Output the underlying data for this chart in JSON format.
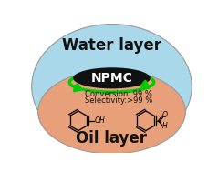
{
  "water_layer_color": "#a8d8ea",
  "oil_layer_color": "#e8a07a",
  "npmc_color": "#111111",
  "npmc_edge_color": "#00bb00",
  "water_text": "Water layer",
  "water_text_color": "#111111",
  "npmc_text": "NPMC",
  "npmc_text_color": "#ffffff",
  "oil_text": "Oil layer",
  "oil_text_color": "#111111",
  "conversion_text": "Conversion: 99 %",
  "selectivity_text": "Selectivity:>99 %",
  "stats_text_color": "#111111",
  "arrow_color": "#00cc00",
  "bg_color": "#ffffff"
}
